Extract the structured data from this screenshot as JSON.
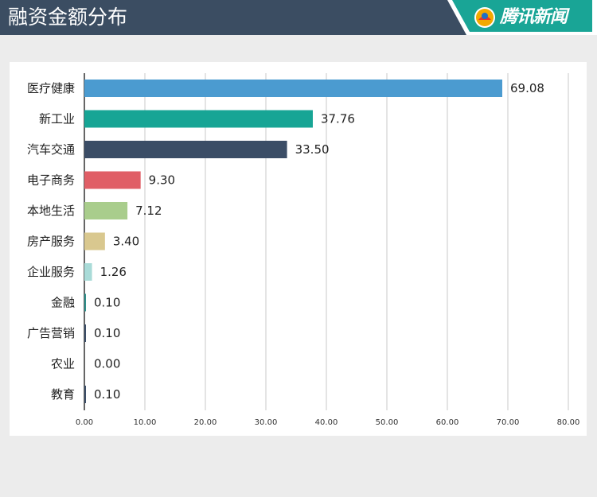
{
  "header": {
    "title": "融资金额分布",
    "brand": "腾讯新闻",
    "colors": {
      "bar": "#3b4d62",
      "accent": "#19a596"
    }
  },
  "chart_data": {
    "type": "bar",
    "orientation": "horizontal",
    "title": "",
    "xlabel": "",
    "ylabel": "",
    "categories": [
      "医疗健康",
      "新工业",
      "汽车交通",
      "电子商务",
      "本地生活",
      "房产服务",
      "企业服务",
      "金融",
      "广告营销",
      "农业",
      "教育"
    ],
    "values": [
      69.08,
      37.76,
      33.5,
      9.3,
      7.12,
      3.4,
      1.26,
      0.1,
      0.1,
      0.0,
      0.1
    ],
    "value_labels": [
      "69.08",
      "37.76",
      "33.50",
      "9.30",
      "7.12",
      "3.40",
      "1.26",
      "0.10",
      "0.10",
      "0.00",
      "0.10"
    ],
    "colors": [
      "#4b9bd0",
      "#17a595",
      "#3b4d66",
      "#e05e66",
      "#a9cd8c",
      "#d9c88f",
      "#a9dbd8",
      "#2e8f8a",
      "#3b4d66",
      "#3b4d66",
      "#3b4d66"
    ],
    "xlim": [
      0,
      80
    ],
    "xticks": [
      "0.00",
      "10.00",
      "20.00",
      "30.00",
      "40.00",
      "50.00",
      "60.00",
      "70.00",
      "80.00"
    ],
    "grid": true,
    "legend": "none"
  }
}
